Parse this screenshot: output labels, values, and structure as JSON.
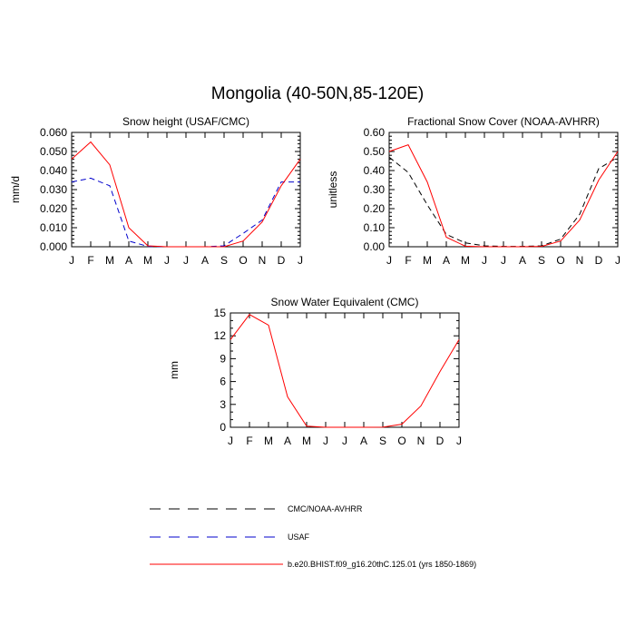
{
  "title": "Mongolia (40-50N,85-120E)",
  "colors": {
    "model": "#ff0000",
    "usaf": "#0000cc",
    "obs": "#000000"
  },
  "chart_data": [
    {
      "type": "line",
      "title": "Snow height (USAF/CMC)",
      "ylabel": "mm/d",
      "xlabel": "",
      "categories": [
        "J",
        "F",
        "M",
        "A",
        "M",
        "J",
        "J",
        "A",
        "S",
        "O",
        "N",
        "D",
        "J"
      ],
      "ylim": [
        0,
        0.06
      ],
      "yticks": [
        "0.000",
        "0.010",
        "0.020",
        "0.030",
        "0.040",
        "0.050",
        "0.060"
      ],
      "series": [
        {
          "name": "b.e20.BHIST.f09_g16.20thC.125.01 (yrs 1850-1869)",
          "style": "model",
          "values": [
            0.046,
            0.055,
            0.043,
            0.01,
            0.0005,
            0,
            0,
            0,
            0,
            0.003,
            0.013,
            0.032,
            0.046
          ]
        },
        {
          "name": "USAF",
          "style": "usaf",
          "values": [
            0.034,
            0.036,
            0.032,
            0.003,
            0.0002,
            0,
            0,
            0,
            0.0005,
            0.007,
            0.014,
            0.034,
            0.034
          ]
        },
        {
          "name": "CMC/NOAA-AVHRR",
          "style": "obs",
          "values": [
            0,
            0,
            0,
            0,
            0,
            0,
            0,
            0,
            0,
            0,
            0,
            0,
            0
          ]
        }
      ]
    },
    {
      "type": "line",
      "title": "Fractional Snow Cover (NOAA-AVHRR)",
      "ylabel": "unitless",
      "xlabel": "",
      "categories": [
        "J",
        "F",
        "M",
        "A",
        "M",
        "J",
        "J",
        "A",
        "S",
        "O",
        "N",
        "D",
        "J"
      ],
      "ylim": [
        0,
        0.6
      ],
      "yticks": [
        "0.00",
        "0.10",
        "0.20",
        "0.30",
        "0.40",
        "0.50",
        "0.60"
      ],
      "series": [
        {
          "name": "b.e20.BHIST.f09_g16.20thC.125.01 (yrs 1850-1869)",
          "style": "model",
          "values": [
            0.5,
            0.535,
            0.34,
            0.05,
            0.003,
            0,
            0,
            0,
            0.002,
            0.03,
            0.14,
            0.35,
            0.5
          ]
        },
        {
          "name": "CMC/NOAA-AVHRR",
          "style": "obs",
          "values": [
            0.47,
            0.39,
            0.22,
            0.065,
            0.02,
            0.005,
            0.002,
            0.002,
            0.005,
            0.04,
            0.17,
            0.41,
            0.47
          ]
        }
      ]
    },
    {
      "type": "line",
      "title": "Snow Water Equivalent (CMC)",
      "ylabel": "mm",
      "xlabel": "",
      "categories": [
        "J",
        "F",
        "M",
        "A",
        "M",
        "J",
        "J",
        "A",
        "S",
        "O",
        "N",
        "D",
        "J"
      ],
      "ylim": [
        0,
        15
      ],
      "yticks": [
        "0",
        "3",
        "6",
        "9",
        "12",
        "15"
      ],
      "series": [
        {
          "name": "b.e20.BHIST.f09_g16.20thC.125.01 (yrs 1850-1869)",
          "style": "model",
          "values": [
            11.5,
            14.8,
            13.4,
            4.0,
            0.15,
            0,
            0,
            0,
            0.02,
            0.4,
            2.8,
            7.3,
            11.5
          ]
        },
        {
          "name": "CMC/NOAA-AVHRR",
          "style": "obs",
          "values": [
            0,
            0,
            0,
            0,
            0,
            0,
            0,
            0,
            0,
            0,
            0,
            0,
            0
          ]
        }
      ]
    }
  ],
  "legend": [
    {
      "label": "CMC/NOAA-AVHRR",
      "style": "obs"
    },
    {
      "label": "USAF",
      "style": "usaf"
    },
    {
      "label": "b.e20.BHIST.f09_g16.20thC.125.01 (yrs 1850-1869)",
      "style": "model"
    }
  ]
}
